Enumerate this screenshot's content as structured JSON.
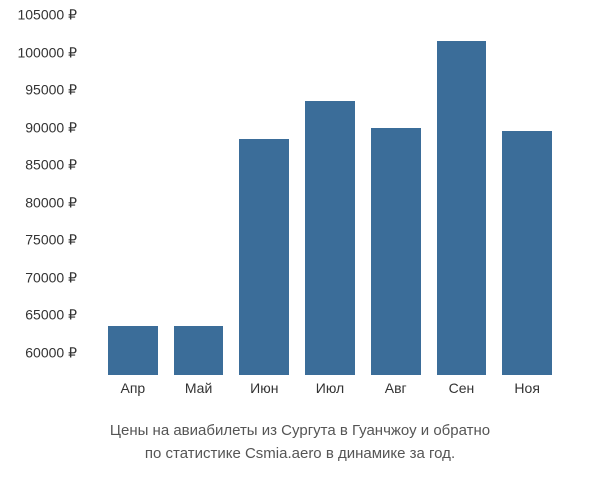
{
  "chart": {
    "type": "bar",
    "categories": [
      "Апр",
      "Май",
      "Июн",
      "Июл",
      "Авг",
      "Сен",
      "Ноя"
    ],
    "values": [
      63500,
      63500,
      88500,
      93500,
      90000,
      101500,
      89500
    ],
    "bar_color": "#3b6d99",
    "ylim": [
      57000,
      105000
    ],
    "ytick_step": 5000,
    "y_min_tick": 60000,
    "y_max_tick": 105000,
    "currency_suffix": " ₽",
    "background_color": "#ffffff",
    "label_fontsize": 14,
    "caption_fontsize": 15,
    "label_color": "#333333",
    "caption_color": "#555555"
  },
  "caption": {
    "line1": "Цены на авиабилеты из Сургута в Гуанчжоу и обратно",
    "line2": "по статистике Csmia.aero в динамике за год."
  }
}
